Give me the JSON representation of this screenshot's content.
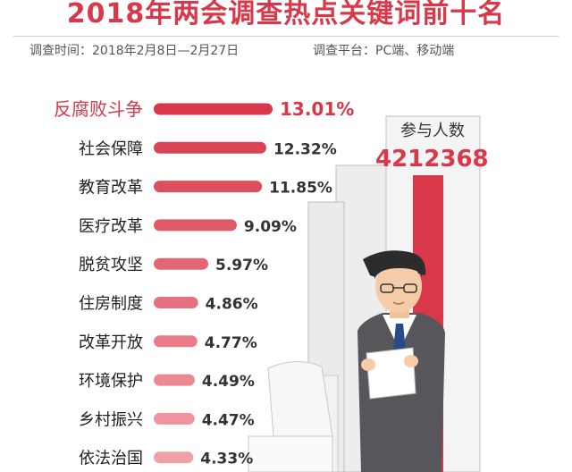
{
  "header": {
    "title": "2018年两会调查热点关键词前十名",
    "period": "调查时间：2018年2月8日—2月27日",
    "platform": "调查平台：PC端、移动端"
  },
  "participants": {
    "label": "参与人数",
    "value": "4212368"
  },
  "colors": {
    "bar_dark": "#d8384a",
    "bar_light": "#f0a0a8",
    "title": "#d8384a",
    "text": "#222222",
    "value_text": "#333333"
  },
  "chart_data": {
    "type": "bar",
    "orientation": "horizontal",
    "title": "",
    "xlabel": "",
    "ylabel": "",
    "categories": [
      "反腐败斗争",
      "社会保障",
      "教育改革",
      "医疗改革",
      "脱贫攻坚",
      "住房制度",
      "改革开放",
      "环境保护",
      "乡村振兴",
      "依法治国"
    ],
    "values": [
      13.01,
      12.32,
      11.85,
      9.09,
      5.97,
      4.86,
      4.77,
      4.49,
      4.47,
      4.33
    ],
    "value_labels": [
      "13.01%",
      "12.32%",
      "11.85%",
      "9.09%",
      "5.97%",
      "4.86%",
      "4.77%",
      "4.49%",
      "4.47%",
      "4.33%"
    ],
    "unit": "%",
    "highlight_first": true,
    "grid": false,
    "legend": "none"
  }
}
